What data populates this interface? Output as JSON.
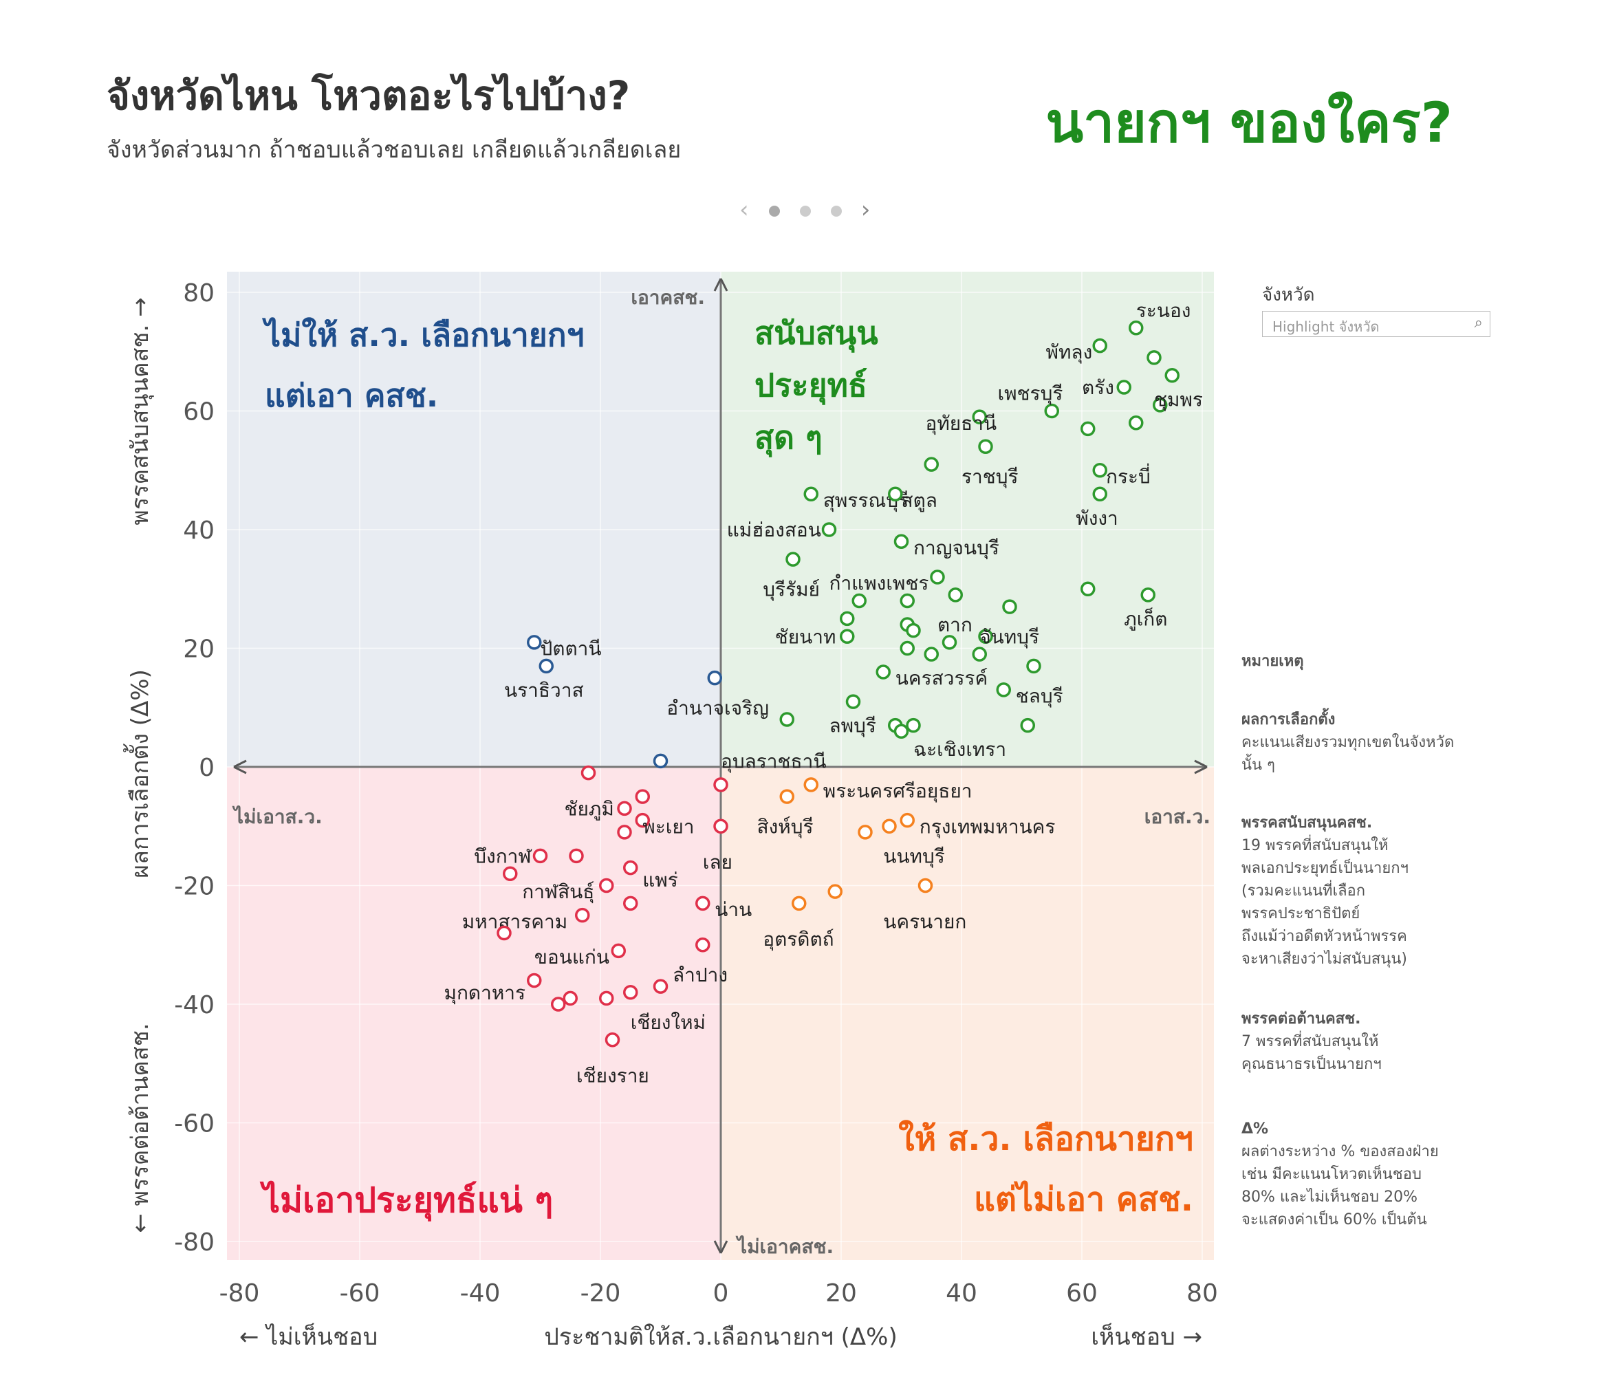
{
  "header": {
    "title": "จังหวัดไหน โหวตอะไรไปบ้าง?",
    "subtitle": "จังหวัดส่วนมาก ถ้าชอบแล้วชอบเลย เกลียดแล้วเกลียดเลย",
    "brand": "นายกฯ ของใคร?"
  },
  "filter": {
    "label": "จังหวัด",
    "placeholder": "Highlight จังหวัด"
  },
  "legend_notes": {
    "heading": "หมายเหตุ",
    "items": [
      {
        "title": "ผลการเลือกตั้ง",
        "lines": [
          "คะแนนเสียงรวมทุกเขตในจังหวัด",
          "นั้น ๆ"
        ]
      },
      {
        "title": "พรรคสนับสนุนคสช.",
        "lines": [
          "19 พรรคที่สนับสนุนให้",
          "พลเอกประยุทธ์เป็นนายกฯ",
          "(รวมคะแนนที่เลือก",
          "พรรคประชาธิปัตย์",
          "ถึงแม้ว่าอดีตหัวหน้าพรรค",
          "จะหาเสียงว่าไม่สนับสนุน)"
        ]
      },
      {
        "title": "พรรคต่อต้านคสช.",
        "lines": [
          "7 พรรคที่สนับสนุนให้",
          "คุณธนาธรเป็นนายกฯ"
        ]
      },
      {
        "title": "Δ%",
        "lines": [
          "ผลต่างระหว่าง % ของสองฝ่าย",
          "เช่น มีคะแนนโหวตเห็นชอบ",
          "80% และไม่เห็นชอบ 20%",
          "จะแสดงค่าเป็น 60% เป็นต้น"
        ]
      }
    ]
  },
  "chart_data": {
    "type": "scatter",
    "xlabel": "ประชามติให้ส.ว.เลือกนายกฯ (Δ%)",
    "xlabel_left": "← ไม่เห็นชอบ",
    "xlabel_right": "เห็นชอบ →",
    "ylabel": "ผลการเลือกตั้ง (Δ%)",
    "ylabel_top": "พรรคสนับสนุนคสช. →",
    "ylabel_bottom": "← พรรคต่อต้านคสช.",
    "xlim": [
      -80,
      80
    ],
    "ylim": [
      -80,
      80
    ],
    "xticks": [
      -80,
      -60,
      -40,
      -20,
      0,
      20,
      40,
      60,
      80
    ],
    "yticks": [
      80,
      60,
      40,
      20,
      0,
      -20,
      -40,
      -60,
      -80
    ],
    "grid": true,
    "axis_labels": {
      "up": "เอาคสช.",
      "down": "ไม่เอาคสช.",
      "left": "ไม่เอาส.ว.",
      "right": "เอาส.ว."
    },
    "quadrants": [
      {
        "id": "top-left",
        "lines": [
          "ไม่ให้ ส.ว. เลือกนายกฯ",
          "แต่เอา คสช."
        ],
        "color": "#1f4e8c",
        "fill": "#e8ecf2"
      },
      {
        "id": "top-right",
        "lines": [
          "สนับสนุน",
          "ประยุทธ์",
          "สุด ๆ"
        ],
        "color": "#1e8c1e",
        "fill": "#e6f2e6"
      },
      {
        "id": "bottom-left",
        "lines": [
          "ไม่เอาประยุทธ์แน่ ๆ"
        ],
        "color": "#e0183a",
        "fill": "#fde4e8"
      },
      {
        "id": "bottom-right",
        "lines": [
          "ให้ ส.ว. เลือกนายกฯ",
          "แต่ไม่เอา คสช."
        ],
        "color": "#f06010",
        "fill": "#fdece2"
      }
    ],
    "colors": {
      "blue": "#2a5a94",
      "green": "#2e9a2e",
      "red": "#e0304a",
      "orange": "#f5811f"
    },
    "points": [
      {
        "x": 69,
        "y": 74,
        "c": "green",
        "label": "ระนอง",
        "lx": 69,
        "ly": 77
      },
      {
        "x": 63,
        "y": 71,
        "c": "green",
        "label": "พัทลุง",
        "lx": 54,
        "ly": 70
      },
      {
        "x": 72,
        "y": 69,
        "c": "green"
      },
      {
        "x": 75,
        "y": 66,
        "c": "green"
      },
      {
        "x": 67,
        "y": 64,
        "c": "green",
        "label": "ตรัง",
        "lx": 60,
        "ly": 64
      },
      {
        "x": 73,
        "y": 61,
        "c": "green",
        "label": "ชุมพร",
        "lx": 72,
        "ly": 62
      },
      {
        "x": 55,
        "y": 60,
        "c": "green",
        "label": "เพชรบุรี",
        "lx": 46,
        "ly": 63
      },
      {
        "x": 43,
        "y": 59,
        "c": "green",
        "label": "อุทัยธานี",
        "lx": 34,
        "ly": 58
      },
      {
        "x": 61,
        "y": 57,
        "c": "green"
      },
      {
        "x": 69,
        "y": 58,
        "c": "green"
      },
      {
        "x": 44,
        "y": 54,
        "c": "green"
      },
      {
        "x": 35,
        "y": 51,
        "c": "green",
        "label": "ราชบุรี",
        "lx": 40,
        "ly": 49
      },
      {
        "x": 63,
        "y": 50,
        "c": "green",
        "label": "กระบี่",
        "lx": 64,
        "ly": 49
      },
      {
        "x": 63,
        "y": 46,
        "c": "green",
        "label": "พังงา",
        "lx": 59,
        "ly": 42
      },
      {
        "x": 15,
        "y": 46,
        "c": "green",
        "label": "สุพรรณบุรี",
        "lx": 17,
        "ly": 45
      },
      {
        "x": 29,
        "y": 46,
        "c": "green",
        "label": "สตูล",
        "lx": 30,
        "ly": 45
      },
      {
        "x": 18,
        "y": 40,
        "c": "green",
        "label": "แม่ฮ่องสอน",
        "lx": 1,
        "ly": 40
      },
      {
        "x": 30,
        "y": 38,
        "c": "green",
        "label": "กาญจนบุรี",
        "lx": 32,
        "ly": 37
      },
      {
        "x": 12,
        "y": 35,
        "c": "green",
        "label": "บุรีรัมย์",
        "lx": 7,
        "ly": 30
      },
      {
        "x": 36,
        "y": 32,
        "c": "green",
        "label": "กำแพงเพชร",
        "lx": 18,
        "ly": 31
      },
      {
        "x": 61,
        "y": 30,
        "c": "green"
      },
      {
        "x": 71,
        "y": 29,
        "c": "green",
        "label": "ภูเก็ต",
        "lx": 67,
        "ly": 25
      },
      {
        "x": 39,
        "y": 29,
        "c": "green"
      },
      {
        "x": 23,
        "y": 28,
        "c": "green"
      },
      {
        "x": 31,
        "y": 28,
        "c": "green"
      },
      {
        "x": 48,
        "y": 27,
        "c": "green"
      },
      {
        "x": 21,
        "y": 25,
        "c": "green"
      },
      {
        "x": 31,
        "y": 24,
        "c": "green",
        "label": "ตาก",
        "lx": 36,
        "ly": 24
      },
      {
        "x": 32,
        "y": 23,
        "c": "green"
      },
      {
        "x": 21,
        "y": 22,
        "c": "green",
        "label": "ชัยนาท",
        "lx": 9,
        "ly": 22
      },
      {
        "x": 44,
        "y": 22,
        "c": "green",
        "label": "จันทบุรี",
        "lx": 43,
        "ly": 22
      },
      {
        "x": 38,
        "y": 21,
        "c": "green"
      },
      {
        "x": 31,
        "y": 20,
        "c": "green"
      },
      {
        "x": 35,
        "y": 19,
        "c": "green"
      },
      {
        "x": 43,
        "y": 19,
        "c": "green"
      },
      {
        "x": 52,
        "y": 17,
        "c": "green"
      },
      {
        "x": 27,
        "y": 16,
        "c": "green",
        "label": "นครสวรรค์",
        "lx": 29,
        "ly": 15
      },
      {
        "x": 47,
        "y": 13,
        "c": "green",
        "label": "ชลบุรี",
        "lx": 49,
        "ly": 12
      },
      {
        "x": 22,
        "y": 11,
        "c": "green"
      },
      {
        "x": 11,
        "y": 8,
        "c": "green"
      },
      {
        "x": 29,
        "y": 7,
        "c": "green",
        "label": "ลพบุรี",
        "lx": 18,
        "ly": 7
      },
      {
        "x": 32,
        "y": 7,
        "c": "green"
      },
      {
        "x": 51,
        "y": 7,
        "c": "green"
      },
      {
        "x": 30,
        "y": 6,
        "c": "green",
        "label": "ฉะเชิงเทรา",
        "lx": 32,
        "ly": 3
      },
      {
        "x": -31,
        "y": 21,
        "c": "blue",
        "label": "ปัตตานี",
        "lx": -30,
        "ly": 20
      },
      {
        "x": -29,
        "y": 17,
        "c": "blue",
        "label": "นราธิวาส",
        "lx": -36,
        "ly": 13
      },
      {
        "x": -1,
        "y": 15,
        "c": "blue",
        "label": "อำนาจเจริญ",
        "lx": -9,
        "ly": 10
      },
      {
        "x": -10,
        "y": 1,
        "c": "blue",
        "label": "อุบลราชธานี",
        "lx": 0,
        "ly": 1
      },
      {
        "x": -22,
        "y": -1,
        "c": "red"
      },
      {
        "x": 0,
        "y": -3,
        "c": "red"
      },
      {
        "x": 15,
        "y": -3,
        "c": "orange",
        "label": "พระนครศรีอยุธยา",
        "lx": 17,
        "ly": -4
      },
      {
        "x": 11,
        "y": -5,
        "c": "orange",
        "label": "สิงห์บุรี",
        "lx": 6,
        "ly": -10
      },
      {
        "x": -13,
        "y": -5,
        "c": "red"
      },
      {
        "x": -16,
        "y": -7,
        "c": "red",
        "label": "ชัยภูมิ",
        "lx": -26,
        "ly": -7
      },
      {
        "x": -13,
        "y": -9,
        "c": "red",
        "label": "พะเยา",
        "lx": -13,
        "ly": -10
      },
      {
        "x": 31,
        "y": -9,
        "c": "orange",
        "label": "กรุงเทพมหานคร",
        "lx": 33,
        "ly": -10
      },
      {
        "x": -16,
        "y": -11,
        "c": "red"
      },
      {
        "x": 0,
        "y": -10,
        "c": "red",
        "label": "เลย",
        "lx": -3,
        "ly": -16
      },
      {
        "x": 28,
        "y": -10,
        "c": "orange"
      },
      {
        "x": 24,
        "y": -11,
        "c": "orange",
        "label": "นนทบุรี",
        "lx": 27,
        "ly": -15
      },
      {
        "x": -30,
        "y": -15,
        "c": "red",
        "label": "บึงกาฬ",
        "lx": -41,
        "ly": -15
      },
      {
        "x": -24,
        "y": -15,
        "c": "red"
      },
      {
        "x": -15,
        "y": -17,
        "c": "red",
        "label": "แพร่",
        "lx": -13,
        "ly": -19
      },
      {
        "x": -35,
        "y": -18,
        "c": "red"
      },
      {
        "x": -19,
        "y": -20,
        "c": "red",
        "label": "กาฬสินธุ์",
        "lx": -33,
        "ly": -21
      },
      {
        "x": 34,
        "y": -20,
        "c": "orange",
        "label": "นครนายก",
        "lx": 27,
        "ly": -26
      },
      {
        "x": 19,
        "y": -21,
        "c": "orange"
      },
      {
        "x": -15,
        "y": -23,
        "c": "red"
      },
      {
        "x": -3,
        "y": -23,
        "c": "red",
        "label": "น่าน",
        "lx": -1,
        "ly": -24
      },
      {
        "x": 13,
        "y": -23,
        "c": "orange",
        "label": "อุตรดิตถ์",
        "lx": 7,
        "ly": -29
      },
      {
        "x": -23,
        "y": -25,
        "c": "red",
        "label": "มหาสารคาม",
        "lx": -43,
        "ly": -26
      },
      {
        "x": -36,
        "y": -28,
        "c": "red"
      },
      {
        "x": -3,
        "y": -30,
        "c": "red",
        "label": "ลำปาง",
        "lx": -8,
        "ly": -35
      },
      {
        "x": -17,
        "y": -31,
        "c": "red",
        "label": "ขอนแก่น",
        "lx": -31,
        "ly": -32
      },
      {
        "x": -31,
        "y": -36,
        "c": "red",
        "label": "มุกดาหาร",
        "lx": -46,
        "ly": -38
      },
      {
        "x": -10,
        "y": -37,
        "c": "red"
      },
      {
        "x": -15,
        "y": -38,
        "c": "red",
        "label": "เชียงใหม่",
        "lx": -15,
        "ly": -43
      },
      {
        "x": -25,
        "y": -39,
        "c": "red"
      },
      {
        "x": -19,
        "y": -39,
        "c": "red"
      },
      {
        "x": -27,
        "y": -40,
        "c": "red"
      },
      {
        "x": -18,
        "y": -46,
        "c": "red",
        "label": "เชียงราย",
        "lx": -24,
        "ly": -52
      }
    ]
  }
}
